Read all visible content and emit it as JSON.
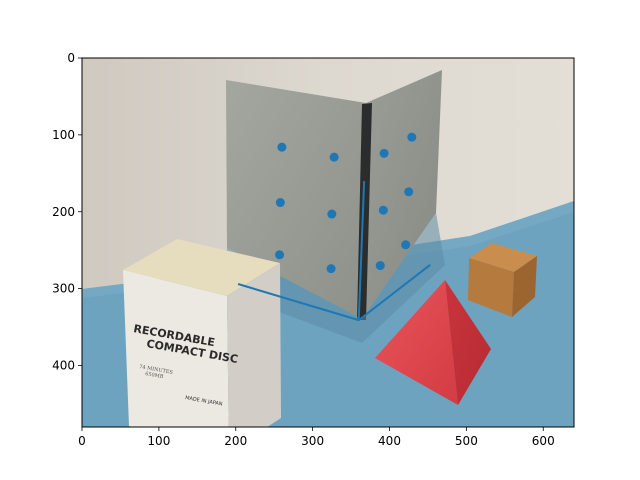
{
  "colors": {
    "marker": "#1f77b4",
    "line": "#1f77b4",
    "wall": "#d8d3cb",
    "table": "#6ea3bf",
    "panel": "#9ea29a",
    "hinge": "#2a2d2c",
    "box_front": "#ece9e2",
    "box_top": "#e6dcbe",
    "pyramid": "#d93d45",
    "cube": "#b57a3d"
  },
  "image_text": {
    "box_line1": "RECORDABLE",
    "box_line2": "COMPACT DISC",
    "box_small1": "74 MINUTES",
    "box_small2": "650MB",
    "box_made_in": "MADE IN JAPAN"
  },
  "chart_data": {
    "type": "scatter",
    "title": "",
    "xlabel": "",
    "ylabel": "",
    "xlim": [
      0,
      640
    ],
    "ylim": [
      480,
      0
    ],
    "y_inverted": true,
    "grid": false,
    "xticks": [
      0,
      100,
      200,
      300,
      400,
      500,
      600
    ],
    "yticks": [
      0,
      100,
      200,
      300,
      400
    ],
    "series": [
      {
        "type": "scatter",
        "points": [
          {
            "x": 260,
            "y": 116
          },
          {
            "x": 328,
            "y": 129
          },
          {
            "x": 393,
            "y": 124
          },
          {
            "x": 429,
            "y": 103
          },
          {
            "x": 258,
            "y": 188
          },
          {
            "x": 325,
            "y": 203
          },
          {
            "x": 392,
            "y": 198
          },
          {
            "x": 425,
            "y": 174
          },
          {
            "x": 257,
            "y": 256
          },
          {
            "x": 324,
            "y": 274
          },
          {
            "x": 388,
            "y": 270
          },
          {
            "x": 421,
            "y": 243
          }
        ]
      },
      {
        "type": "line",
        "points": [
          {
            "x": 203,
            "y": 294
          },
          {
            "x": 360,
            "y": 341
          },
          {
            "x": 367,
            "y": 160
          }
        ]
      },
      {
        "type": "line",
        "points": [
          {
            "x": 360,
            "y": 341
          },
          {
            "x": 453,
            "y": 269
          }
        ]
      }
    ]
  }
}
